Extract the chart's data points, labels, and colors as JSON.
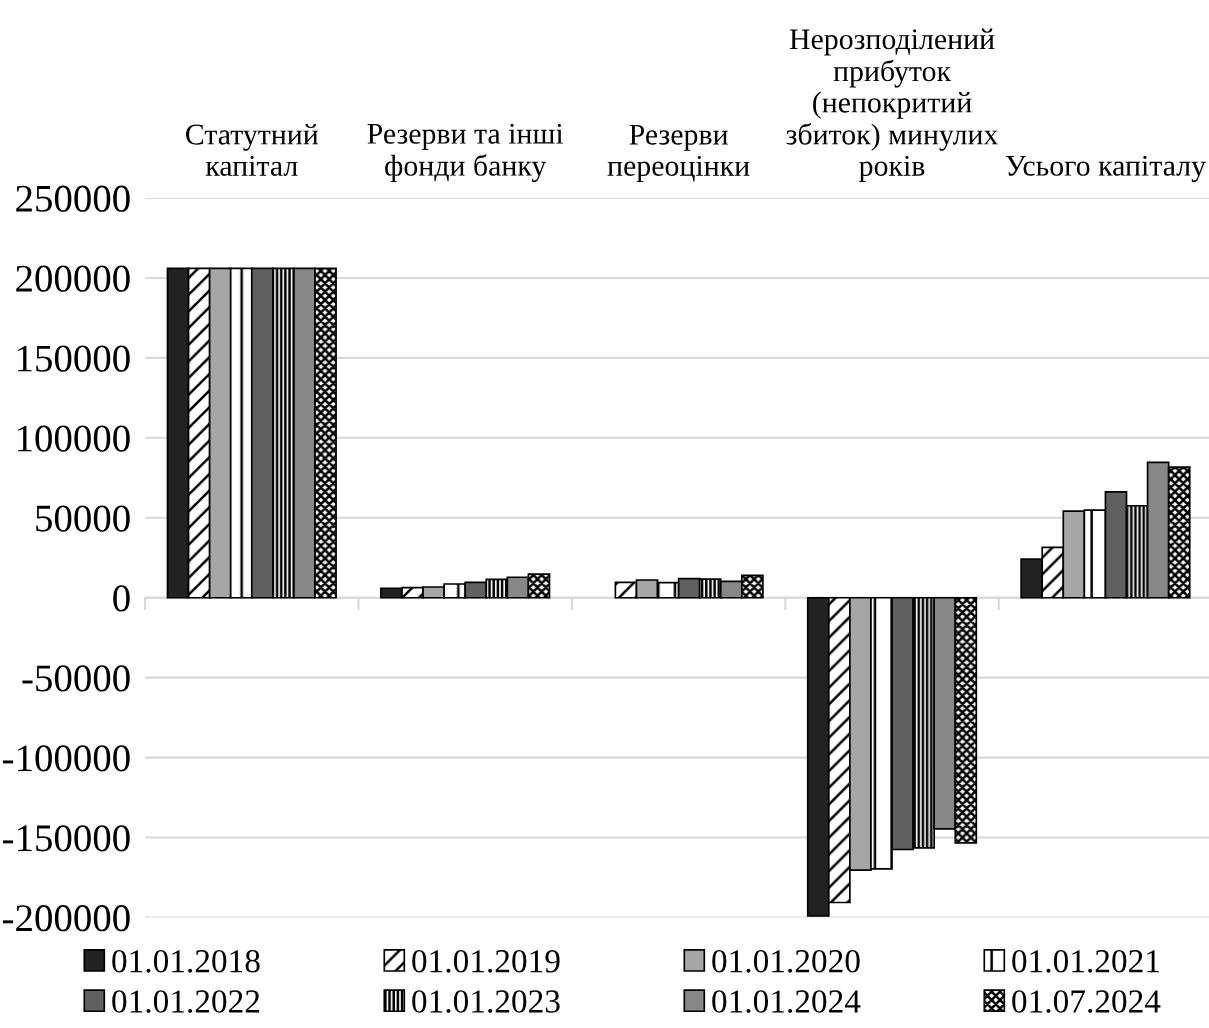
{
  "chart_data": {
    "type": "bar",
    "categories": [
      "Статутний\nкапітал",
      "Резерви та інші\nфонди банку",
      "Резерви\nпереоцінки",
      "Нерозподілений\nприбуток\n(непокритий\nзбиток) минулих\nроків",
      "Усього капіталу"
    ],
    "series": [
      {
        "name": "01.01.2018",
        "color": "#222222",
        "values": [
          206000,
          5900,
          null,
          -199000,
          24200
        ]
      },
      {
        "name": "01.01.2019",
        "color": "#000000",
        "values": [
          206000,
          6300,
          9600,
          -190600,
          31500
        ]
      },
      {
        "name": "01.01.2020",
        "color": "#a6a6a6",
        "values": [
          206000,
          6700,
          11100,
          -170400,
          54200
        ]
      },
      {
        "name": "01.01.2021",
        "color": "#000000",
        "values": [
          206000,
          8600,
          9400,
          -169600,
          54800
        ]
      },
      {
        "name": "01.01.2022",
        "color": "#606060",
        "values": [
          206000,
          9600,
          11900,
          -157500,
          66200
        ]
      },
      {
        "name": "01.01.2023",
        "color": "#000000",
        "values": [
          206000,
          11500,
          11600,
          -156500,
          57500
        ]
      },
      {
        "name": "01.01.2024",
        "color": "#878787",
        "values": [
          206000,
          12800,
          10200,
          -144600,
          84600
        ]
      },
      {
        "name": "01.07.2024",
        "color": "#000000",
        "values": [
          206000,
          14800,
          14000,
          -153300,
          81700
        ]
      }
    ],
    "ylim": [
      -200000,
      250000
    ],
    "yticks": [
      -200000,
      -150000,
      -100000,
      -50000,
      0,
      50000,
      100000,
      150000,
      200000,
      250000
    ],
    "grid": "y",
    "legend": "bottom"
  }
}
